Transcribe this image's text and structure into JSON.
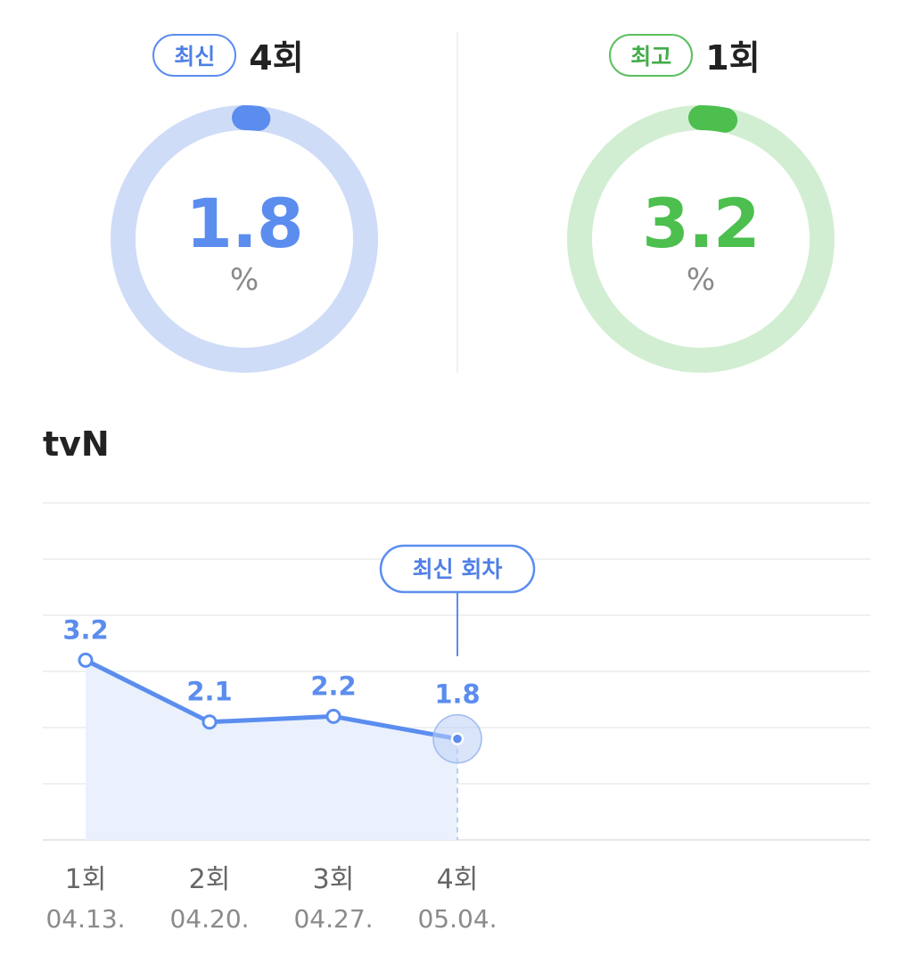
{
  "summary": {
    "latest": {
      "badge": "최신",
      "episode": "4회",
      "value": "1.8",
      "unit": "%",
      "color": "#5b8def",
      "track_color": "#cfdcf7",
      "fraction": 0.018
    },
    "best": {
      "badge": "최고",
      "episode": "1회",
      "value": "3.2",
      "unit": "%",
      "color": "#4cbf4f",
      "track_color": "#d2eed2",
      "fraction": 0.032
    }
  },
  "channel": "tvN",
  "chart_data": {
    "type": "line",
    "categories": [
      "1회",
      "2회",
      "3회",
      "4회"
    ],
    "dates": [
      "04.13.",
      "04.20.",
      "04.27.",
      "05.04."
    ],
    "values": [
      3.2,
      2.1,
      2.2,
      1.8
    ],
    "value_labels": [
      "3.2",
      "2.1",
      "2.2",
      "1.8"
    ],
    "highlight_index": 3,
    "highlight_label": "최신 회차",
    "ylim": [
      0,
      6
    ],
    "grid": true,
    "line_color": "#5b8def",
    "fill_color": "#eaf1fd"
  }
}
